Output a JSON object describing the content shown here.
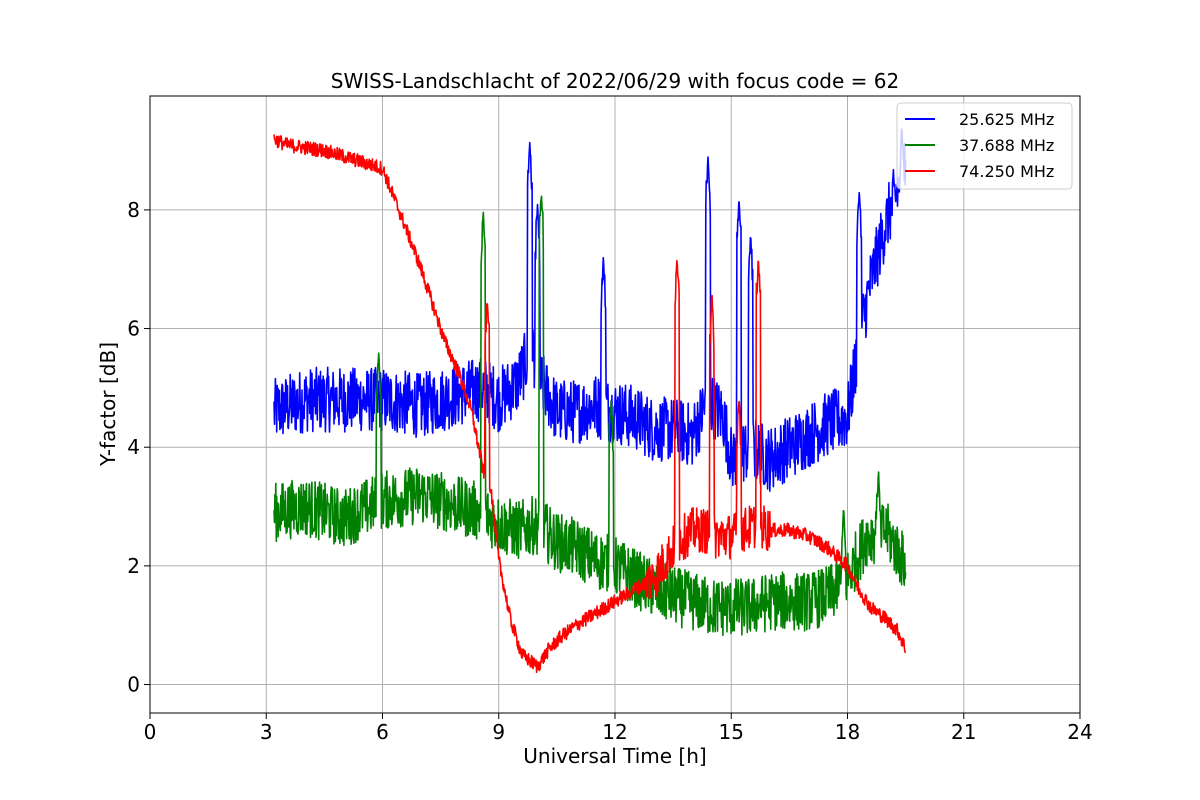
{
  "chart_data": {
    "type": "line",
    "title": "SWISS-Landschlacht of 2022/06/29 with focus code = 62",
    "xlabel": "Universal Time [h]",
    "ylabel": "Y-factor [dB]",
    "xlim": [
      0,
      24
    ],
    "ylim": [
      -0.48,
      9.92
    ],
    "xticks": [
      0,
      3,
      6,
      9,
      12,
      15,
      18,
      21,
      24
    ],
    "xtick_labels": [
      "0",
      "3",
      "6",
      "9",
      "12",
      "15",
      "18",
      "21",
      "24"
    ],
    "yticks": [
      0,
      2,
      4,
      6,
      8
    ],
    "ytick_labels": [
      "0",
      "2",
      "4",
      "6",
      "8"
    ],
    "grid": true,
    "legend_position": "top-right",
    "series": [
      {
        "name": "25.625 MHz",
        "color": "#0000ff",
        "x": [
          3.2,
          4.0,
          5.0,
          6.0,
          7.0,
          8.0,
          8.6,
          9.0,
          9.5,
          9.8,
          10.0,
          10.5,
          11.0,
          11.5,
          12.0,
          12.5,
          13.0,
          13.5,
          14.0,
          14.4,
          14.8,
          15.0,
          15.5,
          16.0,
          16.5,
          17.0,
          17.5,
          18.0,
          18.3,
          18.6,
          19.0,
          19.5
        ],
        "y": [
          4.6,
          4.8,
          4.8,
          4.8,
          4.7,
          4.9,
          5.0,
          4.8,
          5.1,
          5.6,
          5.2,
          4.6,
          4.6,
          4.7,
          4.6,
          4.5,
          4.3,
          4.3,
          4.2,
          4.8,
          4.5,
          3.8,
          4.0,
          3.8,
          4.0,
          4.2,
          4.4,
          4.5,
          5.8,
          6.8,
          7.8,
          8.7
        ],
        "spikes": [
          [
            9.8,
            9.15
          ],
          [
            10.0,
            8.1
          ],
          [
            11.7,
            7.2
          ],
          [
            14.4,
            8.9
          ],
          [
            15.2,
            8.2
          ],
          [
            15.5,
            7.6
          ],
          [
            18.3,
            8.3
          ],
          [
            19.4,
            9.4
          ]
        ]
      },
      {
        "name": "37.688 MHz",
        "color": "#008000",
        "x": [
          3.2,
          4.0,
          5.0,
          6.0,
          7.0,
          8.0,
          8.6,
          9.0,
          9.5,
          10.0,
          10.5,
          11.0,
          11.5,
          12.0,
          12.5,
          13.0,
          13.5,
          14.0,
          14.5,
          15.0,
          15.5,
          16.0,
          16.5,
          17.0,
          17.5,
          18.0,
          18.5,
          19.0,
          19.5
        ],
        "y": [
          2.9,
          3.0,
          2.8,
          3.1,
          3.2,
          3.0,
          2.9,
          2.7,
          2.6,
          2.7,
          2.4,
          2.3,
          2.1,
          2.0,
          1.8,
          1.6,
          1.5,
          1.4,
          1.3,
          1.3,
          1.3,
          1.4,
          1.4,
          1.4,
          1.5,
          1.8,
          2.5,
          2.6,
          2.0
        ],
        "spikes": [
          [
            5.9,
            5.6
          ],
          [
            8.6,
            8.0
          ],
          [
            10.1,
            8.3
          ],
          [
            11.9,
            4.8
          ],
          [
            17.9,
            3.0
          ],
          [
            18.8,
            3.6
          ]
        ]
      },
      {
        "name": "74.250 MHz",
        "color": "#ff0000",
        "x": [
          3.2,
          3.5,
          4.0,
          4.5,
          5.0,
          5.5,
          6.0,
          6.3,
          6.6,
          7.0,
          7.3,
          7.6,
          8.0,
          8.3,
          8.6,
          8.8,
          9.0,
          9.3,
          9.6,
          10.0,
          10.3,
          10.6,
          11.0,
          11.5,
          12.0,
          12.5,
          13.0,
          13.3,
          13.6,
          14.0,
          14.3,
          14.6,
          15.0,
          15.3,
          15.7,
          16.0,
          16.5,
          17.0,
          17.5,
          18.0,
          18.3,
          18.6,
          19.0,
          19.3,
          19.5
        ],
        "y": [
          9.2,
          9.1,
          9.05,
          9.0,
          8.9,
          8.8,
          8.7,
          8.2,
          7.7,
          7.0,
          6.4,
          5.8,
          5.2,
          4.6,
          3.6,
          3.3,
          2.1,
          1.1,
          0.5,
          0.3,
          0.6,
          0.8,
          1.0,
          1.2,
          1.4,
          1.6,
          1.8,
          2.1,
          2.4,
          2.6,
          2.6,
          2.5,
          2.5,
          2.6,
          2.7,
          2.6,
          2.6,
          2.5,
          2.3,
          2.0,
          1.6,
          1.3,
          1.1,
          0.9,
          0.6
        ],
        "spikes": [
          [
            8.7,
            6.5
          ],
          [
            13.6,
            7.2
          ],
          [
            14.5,
            6.6
          ],
          [
            15.2,
            4.8
          ],
          [
            15.7,
            7.2
          ]
        ]
      }
    ]
  }
}
